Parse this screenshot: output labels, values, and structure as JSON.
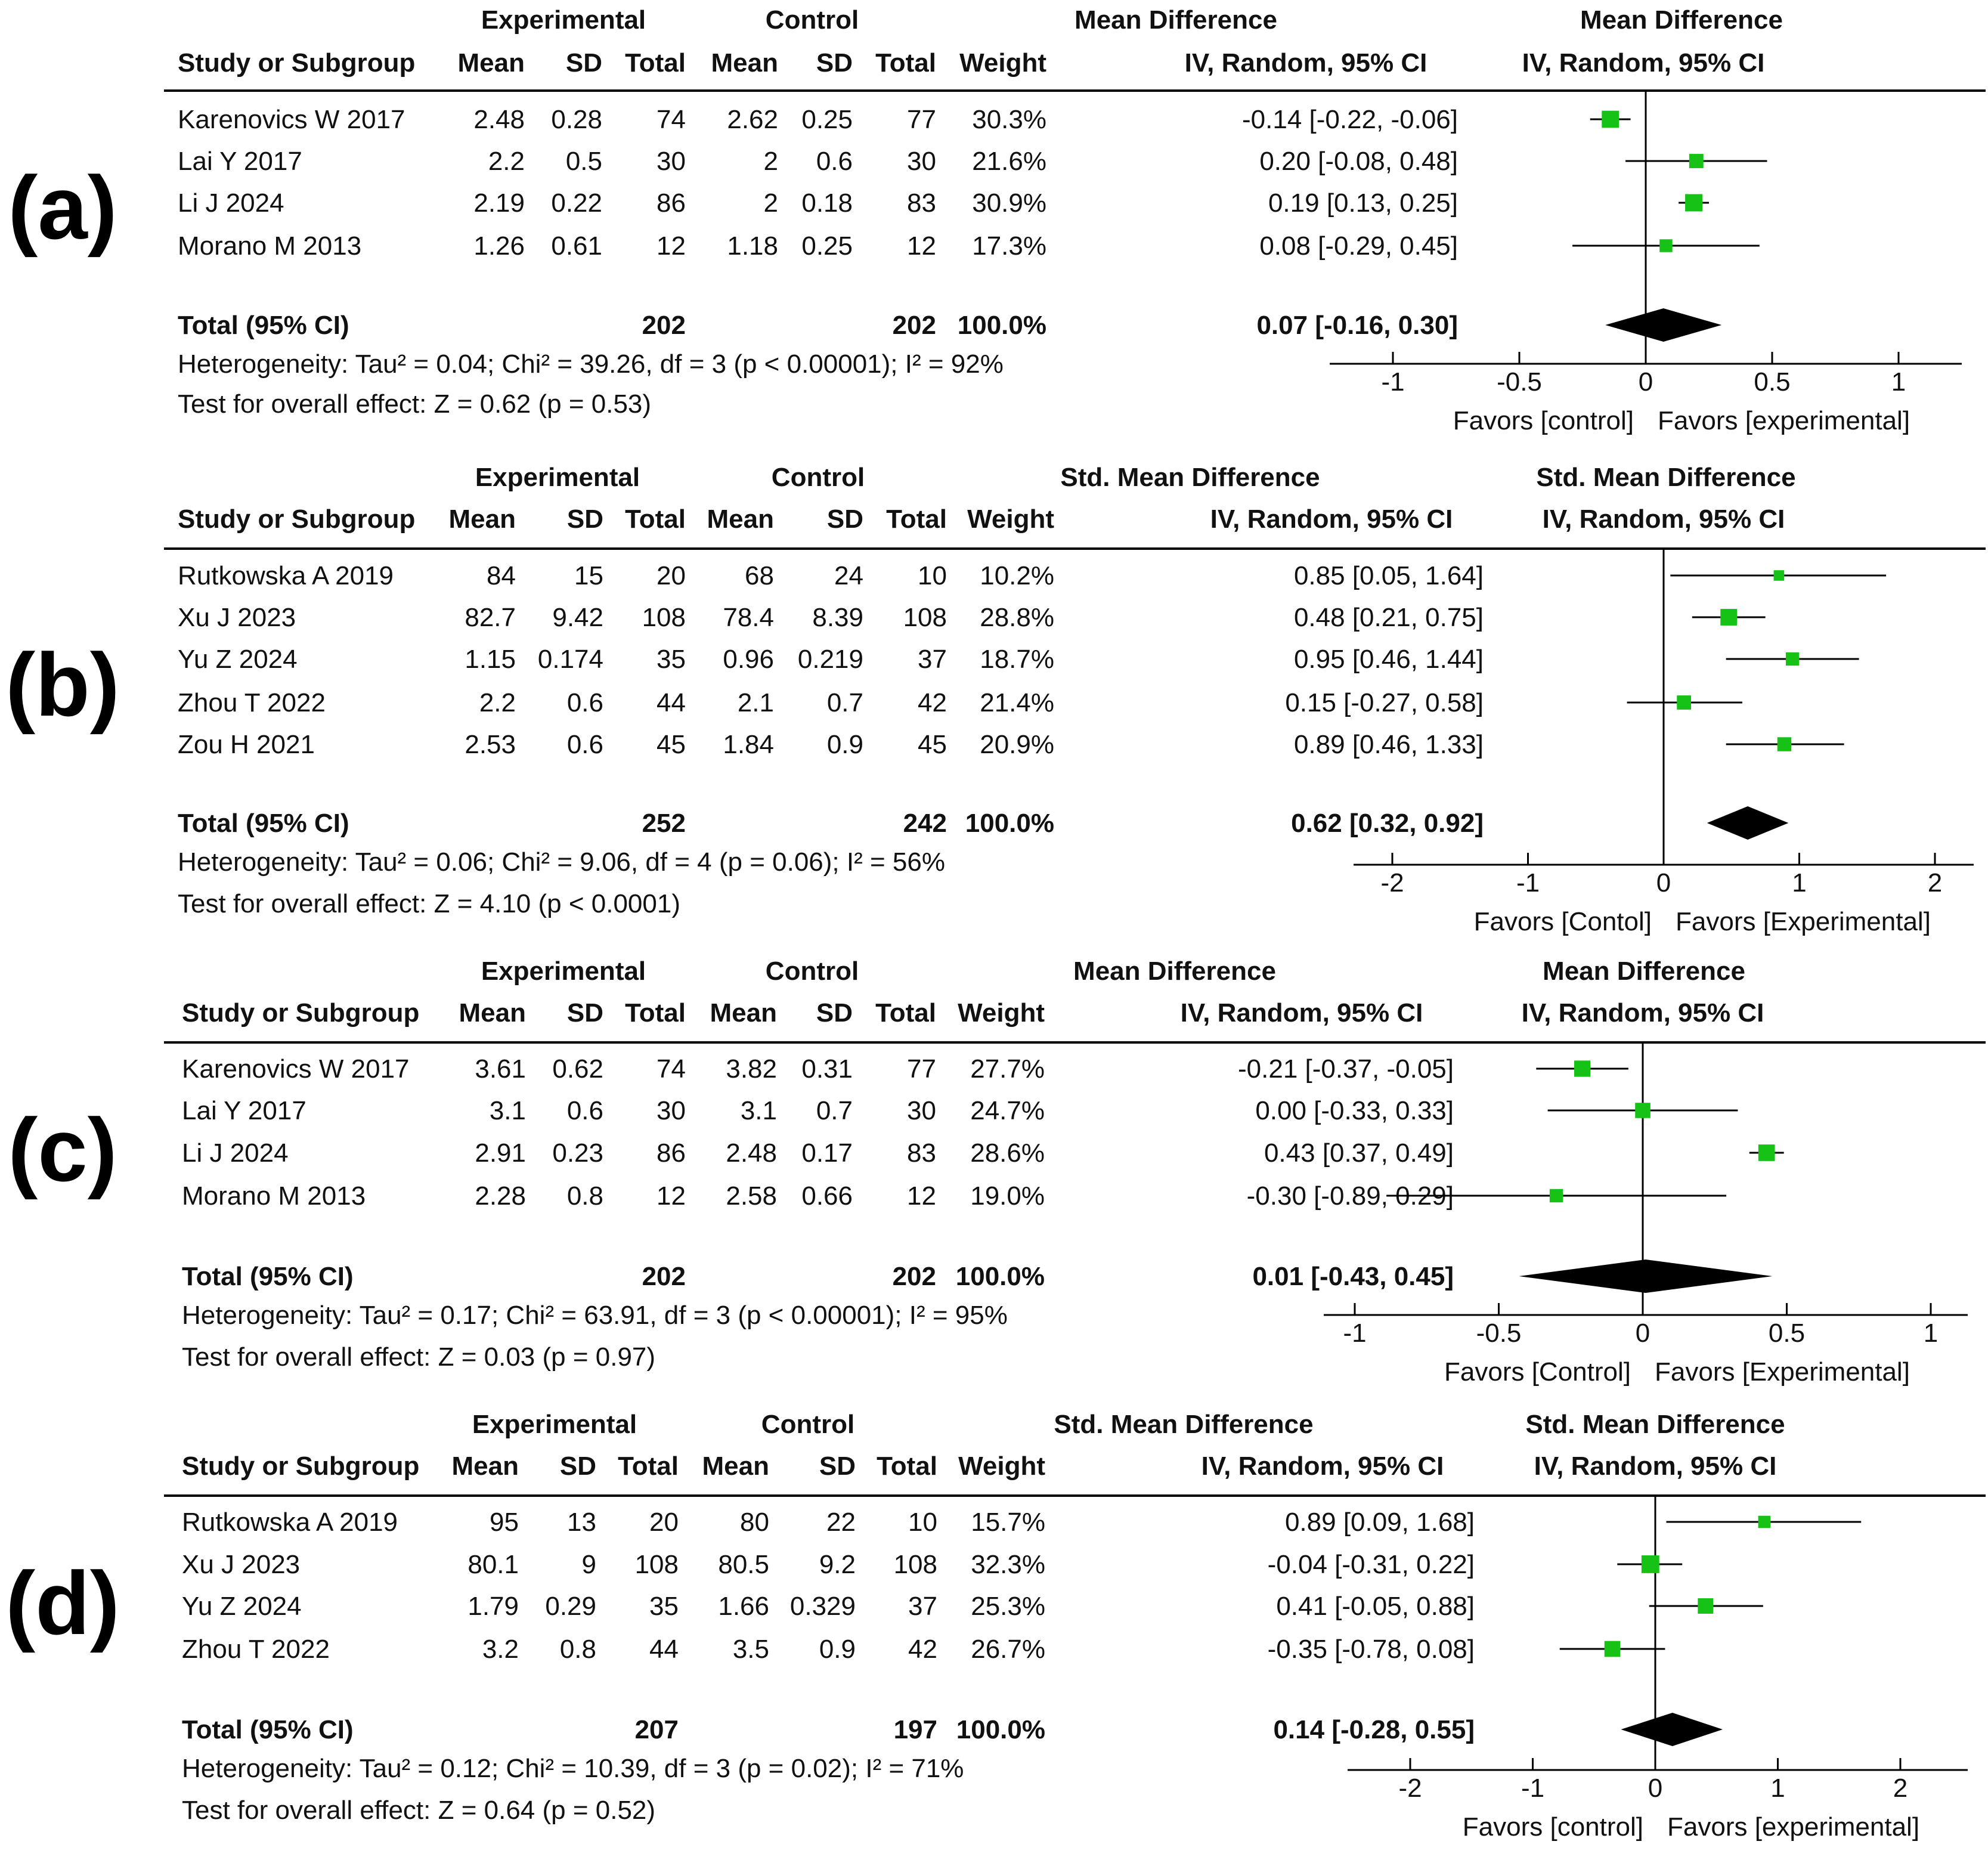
{
  "colors": {
    "marker": "#17c217",
    "line": "#000000",
    "text": "#111111",
    "diamond": "#000000"
  },
  "panels": [
    {
      "letter": "(a)",
      "left_head": {
        "exp": "Experimental",
        "ctl": "Control",
        "effect": "Mean Difference"
      },
      "cols": {
        "study": "Study or Subgroup",
        "mean": "Mean",
        "sd": "SD",
        "total": "Total",
        "weight": "Weight",
        "ci": "IV, Random, 95% CI"
      },
      "plot_head": {
        "title": "Mean Difference",
        "sub": "IV, Random, 95% CI"
      },
      "studies": [
        {
          "name": "Karenovics W 2017",
          "emean": "2.48",
          "esd": "0.28",
          "etot": "74",
          "cmean": "2.62",
          "csd": "0.25",
          "ctot": "77",
          "weight": "30.3%",
          "ci": "-0.14 [-0.22, -0.06]"
        },
        {
          "name": "Lai Y 2017",
          "emean": "2.2",
          "esd": "0.5",
          "etot": "30",
          "cmean": "2",
          "csd": "0.6",
          "ctot": "30",
          "weight": "21.6%",
          "ci": "0.20 [-0.08, 0.48]"
        },
        {
          "name": "Li J 2024",
          "emean": "2.19",
          "esd": "0.22",
          "etot": "86",
          "cmean": "2",
          "csd": "0.18",
          "ctot": "83",
          "weight": "30.9%",
          "ci": "0.19 [0.13, 0.25]"
        },
        {
          "name": "Morano M 2013",
          "emean": "1.26",
          "esd": "0.61",
          "etot": "12",
          "cmean": "1.18",
          "csd": "0.25",
          "ctot": "12",
          "weight": "17.3%",
          "ci": "0.08 [-0.29, 0.45]"
        }
      ],
      "total": {
        "label": "Total (95% CI)",
        "etot": "202",
        "ctot": "202",
        "weight": "100.0%",
        "ci": "0.07 [-0.16, 0.30]"
      },
      "heterogeneity": "Heterogeneity: Tau² = 0.04; Chi² = 39.26, df = 3 (p < 0.00001); I² = 92%",
      "overall": "Test for overall effect: Z = 0.62 (p = 0.53)",
      "favors": {
        "left": "Favors [control]",
        "right": "Favors [experimental]"
      }
    },
    {
      "letter": "(b)",
      "left_head": {
        "exp": "Experimental",
        "ctl": "Control",
        "effect": "Std. Mean Difference"
      },
      "cols": {
        "study": "Study or Subgroup",
        "mean": "Mean",
        "sd": "SD",
        "total": "Total",
        "weight": "Weight",
        "ci": "IV, Random, 95% CI"
      },
      "plot_head": {
        "title": "Std. Mean Difference",
        "sub": "IV, Random, 95% CI"
      },
      "studies": [
        {
          "name": "Rutkowska A 2019",
          "emean": "84",
          "esd": "15",
          "etot": "20",
          "cmean": "68",
          "csd": "24",
          "ctot": "10",
          "weight": "10.2%",
          "ci": "0.85 [0.05, 1.64]"
        },
        {
          "name": "Xu J 2023",
          "emean": "82.7",
          "esd": "9.42",
          "etot": "108",
          "cmean": "78.4",
          "csd": "8.39",
          "ctot": "108",
          "weight": "28.8%",
          "ci": "0.48 [0.21, 0.75]"
        },
        {
          "name": "Yu Z 2024",
          "emean": "1.15",
          "esd": "0.174",
          "etot": "35",
          "cmean": "0.96",
          "csd": "0.219",
          "ctot": "37",
          "weight": "18.7%",
          "ci": "0.95 [0.46, 1.44]"
        },
        {
          "name": "Zhou T 2022",
          "emean": "2.2",
          "esd": "0.6",
          "etot": "44",
          "cmean": "2.1",
          "csd": "0.7",
          "ctot": "42",
          "weight": "21.4%",
          "ci": "0.15 [-0.27, 0.58]"
        },
        {
          "name": "Zou H 2021",
          "emean": "2.53",
          "esd": "0.6",
          "etot": "45",
          "cmean": "1.84",
          "csd": "0.9",
          "ctot": "45",
          "weight": "20.9%",
          "ci": "0.89 [0.46, 1.33]"
        }
      ],
      "total": {
        "label": "Total (95% CI)",
        "etot": "252",
        "ctot": "242",
        "weight": "100.0%",
        "ci": "0.62 [0.32, 0.92]"
      },
      "heterogeneity": "Heterogeneity: Tau² = 0.06; Chi² = 9.06, df = 4 (p = 0.06); I² = 56%",
      "overall": "Test for overall effect: Z = 4.10 (p < 0.0001)",
      "favors": {
        "left": "Favors [Contol]",
        "right": "Favors [Experimental]"
      }
    },
    {
      "letter": "(c)",
      "left_head": {
        "exp": "Experimental",
        "ctl": "Control",
        "effect": "Mean Difference"
      },
      "cols": {
        "study": "Study or Subgroup",
        "mean": "Mean",
        "sd": "SD",
        "total": "Total",
        "weight": "Weight",
        "ci": "IV, Random, 95% CI"
      },
      "plot_head": {
        "title": "Mean Difference",
        "sub": "IV, Random, 95% CI"
      },
      "studies": [
        {
          "name": "Karenovics W 2017",
          "emean": "3.61",
          "esd": "0.62",
          "etot": "74",
          "cmean": "3.82",
          "csd": "0.31",
          "ctot": "77",
          "weight": "27.7%",
          "ci": "-0.21 [-0.37, -0.05]"
        },
        {
          "name": "Lai Y 2017",
          "emean": "3.1",
          "esd": "0.6",
          "etot": "30",
          "cmean": "3.1",
          "csd": "0.7",
          "ctot": "30",
          "weight": "24.7%",
          "ci": "0.00 [-0.33, 0.33]"
        },
        {
          "name": "Li J 2024",
          "emean": "2.91",
          "esd": "0.23",
          "etot": "86",
          "cmean": "2.48",
          "csd": "0.17",
          "ctot": "83",
          "weight": "28.6%",
          "ci": "0.43 [0.37, 0.49]"
        },
        {
          "name": "Morano M 2013",
          "emean": "2.28",
          "esd": "0.8",
          "etot": "12",
          "cmean": "2.58",
          "csd": "0.66",
          "ctot": "12",
          "weight": "19.0%",
          "ci": "-0.30 [-0.89, 0.29]"
        }
      ],
      "total": {
        "label": "Total (95% CI)",
        "etot": "202",
        "ctot": "202",
        "weight": "100.0%",
        "ci": "0.01 [-0.43, 0.45]"
      },
      "heterogeneity": "Heterogeneity: Tau² = 0.17; Chi² = 63.91, df = 3 (p < 0.00001); I² = 95%",
      "overall": "Test for overall effect: Z = 0.03 (p = 0.97)",
      "favors": {
        "left": "Favors [Control]",
        "right": "Favors [Experimental]"
      }
    },
    {
      "letter": "(d)",
      "left_head": {
        "exp": "Experimental",
        "ctl": "Control",
        "effect": "Std. Mean Difference"
      },
      "cols": {
        "study": "Study or Subgroup",
        "mean": "Mean",
        "sd": "SD",
        "total": "Total",
        "weight": "Weight",
        "ci": "IV, Random, 95% CI"
      },
      "plot_head": {
        "title": "Std. Mean Difference",
        "sub": "IV, Random, 95% CI"
      },
      "studies": [
        {
          "name": "Rutkowska A 2019",
          "emean": "95",
          "esd": "13",
          "etot": "20",
          "cmean": "80",
          "csd": "22",
          "ctot": "10",
          "weight": "15.7%",
          "ci": "0.89 [0.09, 1.68]"
        },
        {
          "name": "Xu J 2023",
          "emean": "80.1",
          "esd": "9",
          "etot": "108",
          "cmean": "80.5",
          "csd": "9.2",
          "ctot": "108",
          "weight": "32.3%",
          "ci": "-0.04 [-0.31, 0.22]"
        },
        {
          "name": "Yu Z 2024",
          "emean": "1.79",
          "esd": "0.29",
          "etot": "35",
          "cmean": "1.66",
          "csd": "0.329",
          "ctot": "37",
          "weight": "25.3%",
          "ci": "0.41 [-0.05, 0.88]"
        },
        {
          "name": "Zhou T 2022",
          "emean": "3.2",
          "esd": "0.8",
          "etot": "44",
          "cmean": "3.5",
          "csd": "0.9",
          "ctot": "42",
          "weight": "26.7%",
          "ci": "-0.35 [-0.78, 0.08]"
        }
      ],
      "total": {
        "label": "Total (95% CI)",
        "etot": "207",
        "ctot": "197",
        "weight": "100.0%",
        "ci": "0.14 [-0.28, 0.55]"
      },
      "heterogeneity": "Heterogeneity: Tau² = 0.12; Chi² = 10.39, df = 3 (p = 0.02); I² = 71%",
      "overall": "Test for overall effect: Z = 0.64 (p = 0.52)",
      "favors": {
        "left": "Favors [control]",
        "right": "Favors [experimental]"
      }
    }
  ],
  "chart_data": [
    {
      "type": "forest",
      "panel": "(a)",
      "xlim": [
        -1,
        1
      ],
      "ticks": [
        -1,
        -0.5,
        0,
        0.5,
        1
      ],
      "tick_labels": [
        "-1",
        "-0.5",
        "0",
        "0.5",
        "1"
      ],
      "studies": [
        {
          "name": "Karenovics W 2017",
          "est": -0.14,
          "lo": -0.22,
          "hi": -0.06,
          "weight": 30.3
        },
        {
          "name": "Lai Y 2017",
          "est": 0.2,
          "lo": -0.08,
          "hi": 0.48,
          "weight": 21.6
        },
        {
          "name": "Li J 2024",
          "est": 0.19,
          "lo": 0.13,
          "hi": 0.25,
          "weight": 30.9
        },
        {
          "name": "Morano M 2013",
          "est": 0.08,
          "lo": -0.29,
          "hi": 0.45,
          "weight": 17.3
        }
      ],
      "pooled": {
        "est": 0.07,
        "lo": -0.16,
        "hi": 0.3
      }
    },
    {
      "type": "forest",
      "panel": "(b)",
      "xlim": [
        -2,
        2
      ],
      "ticks": [
        -2,
        -1,
        0,
        1,
        2
      ],
      "tick_labels": [
        "-2",
        "-1",
        "0",
        "1",
        "2"
      ],
      "studies": [
        {
          "name": "Rutkowska A 2019",
          "est": 0.85,
          "lo": 0.05,
          "hi": 1.64,
          "weight": 10.2
        },
        {
          "name": "Xu J 2023",
          "est": 0.48,
          "lo": 0.21,
          "hi": 0.75,
          "weight": 28.8
        },
        {
          "name": "Yu Z 2024",
          "est": 0.95,
          "lo": 0.46,
          "hi": 1.44,
          "weight": 18.7
        },
        {
          "name": "Zhou T 2022",
          "est": 0.15,
          "lo": -0.27,
          "hi": 0.58,
          "weight": 21.4
        },
        {
          "name": "Zou H 2021",
          "est": 0.89,
          "lo": 0.46,
          "hi": 1.33,
          "weight": 20.9
        }
      ],
      "pooled": {
        "est": 0.62,
        "lo": 0.32,
        "hi": 0.92
      }
    },
    {
      "type": "forest",
      "panel": "(c)",
      "xlim": [
        -1,
        1
      ],
      "ticks": [
        -1,
        -0.5,
        0,
        0.5,
        1
      ],
      "tick_labels": [
        "-1",
        "-0.5",
        "0",
        "0.5",
        "1"
      ],
      "studies": [
        {
          "name": "Karenovics W 2017",
          "est": -0.21,
          "lo": -0.37,
          "hi": -0.05,
          "weight": 27.7
        },
        {
          "name": "Lai Y 2017",
          "est": 0.0,
          "lo": -0.33,
          "hi": 0.33,
          "weight": 24.7
        },
        {
          "name": "Li J 2024",
          "est": 0.43,
          "lo": 0.37,
          "hi": 0.49,
          "weight": 28.6
        },
        {
          "name": "Morano M 2013",
          "est": -0.3,
          "lo": -0.89,
          "hi": 0.29,
          "weight": 19.0
        }
      ],
      "pooled": {
        "est": 0.01,
        "lo": -0.43,
        "hi": 0.45
      }
    },
    {
      "type": "forest",
      "panel": "(d)",
      "xlim": [
        -2,
        2
      ],
      "ticks": [
        -2,
        -1,
        0,
        1,
        2
      ],
      "tick_labels": [
        "-2",
        "-1",
        "0",
        "1",
        "2"
      ],
      "studies": [
        {
          "name": "Rutkowska A 2019",
          "est": 0.89,
          "lo": 0.09,
          "hi": 1.68,
          "weight": 15.7
        },
        {
          "name": "Xu J 2023",
          "est": -0.04,
          "lo": -0.31,
          "hi": 0.22,
          "weight": 32.3
        },
        {
          "name": "Yu Z 2024",
          "est": 0.41,
          "lo": -0.05,
          "hi": 0.88,
          "weight": 25.3
        },
        {
          "name": "Zhou T 2022",
          "est": -0.35,
          "lo": -0.78,
          "hi": 0.08,
          "weight": 26.7
        }
      ],
      "pooled": {
        "est": 0.14,
        "lo": -0.28,
        "hi": 0.55
      }
    }
  ]
}
